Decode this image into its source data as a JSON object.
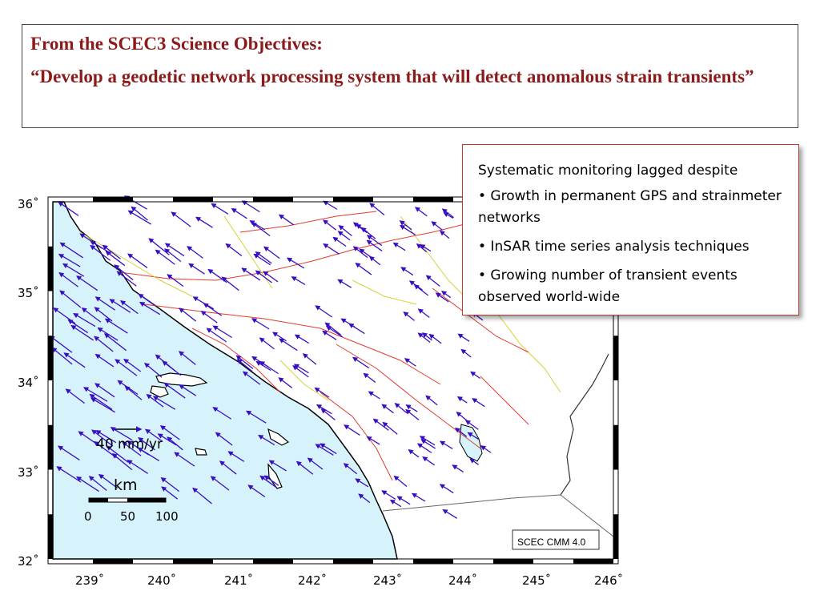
{
  "objective": {
    "heading": "From the SCEC3 Science Objectives:",
    "quote": "“Develop a geodetic network processing system that will detect anomalous strain transients”"
  },
  "info": {
    "intro": "Systematic monitoring lagged despite",
    "bullets": [
      "• Growth in permanent GPS and strainmeter networks",
      "• InSAR time series analysis techniques",
      "• Growing number of transient events observed world-wide"
    ]
  },
  "map": {
    "lat_labels": [
      "36˚",
      "35˚",
      "34˚",
      "33˚",
      "32˚"
    ],
    "lon_labels": [
      "239˚",
      "240˚",
      "241˚",
      "242˚",
      "243˚",
      "244˚",
      "245˚",
      "246˚"
    ],
    "velocity_scale_label": "40 mm/yr",
    "distance_unit": "km",
    "distance_ticks": [
      "0",
      "50",
      "100"
    ],
    "credit": "SCEC CMM 4.0",
    "colors": {
      "ocean": "#d6f2fb",
      "land": "#ffffff",
      "vectors": "#3a0fc2",
      "faults_red": "#e23b2e",
      "faults_yellow": "#d8d23a",
      "title": "#8b1a1a"
    }
  }
}
